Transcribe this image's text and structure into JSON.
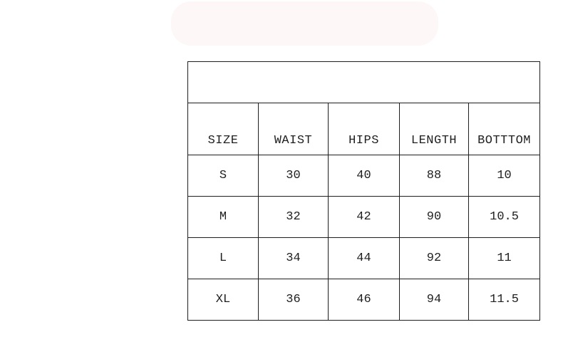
{
  "page": {
    "background_color": "#ffffff",
    "border_color": "#1e1e1e",
    "text_color": "#1f1f1f",
    "watermark_tint": "#fdf7f7"
  },
  "chart_data": {
    "type": "table",
    "title": "",
    "columns": [
      "SIZE",
      "WAIST",
      "HIPS",
      "LENGTH",
      "BOTTTOM"
    ],
    "rows": [
      [
        "S",
        "30",
        "40",
        "88",
        "10"
      ],
      [
        "M",
        "32",
        "42",
        "90",
        "10.5"
      ],
      [
        "L",
        "34",
        "44",
        "92",
        "11"
      ],
      [
        "XL",
        "36",
        "46",
        "94",
        "11.5"
      ]
    ],
    "layout": {
      "top_band_empty": true,
      "grid": "all-borders",
      "cell_alignment": "center"
    }
  }
}
